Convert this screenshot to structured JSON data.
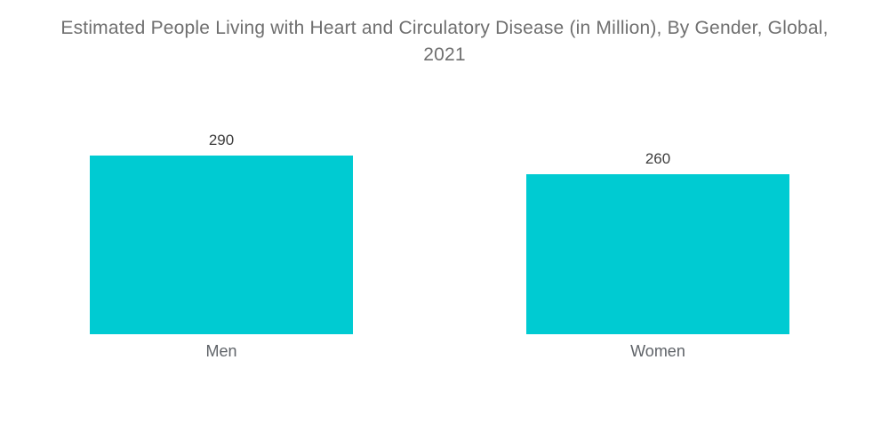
{
  "header": {
    "title_lines": [
      "Estimated People Living with Heart and Circulatory Disease (in Million), By Gender, Global,",
      "2021"
    ]
  },
  "chart_data": {
    "type": "bar",
    "title": "Estimated People Living with Heart and Circulatory Disease (in Million), By Gender, Global, 2021",
    "categories": [
      "Men",
      "Women"
    ],
    "values": [
      290,
      260
    ],
    "value_labels": [
      "290",
      "260"
    ],
    "xlabel": "",
    "ylabel": "",
    "ylim": [
      0,
      290
    ],
    "grid": false,
    "legend": false,
    "bar_color": "#00CBD2"
  }
}
